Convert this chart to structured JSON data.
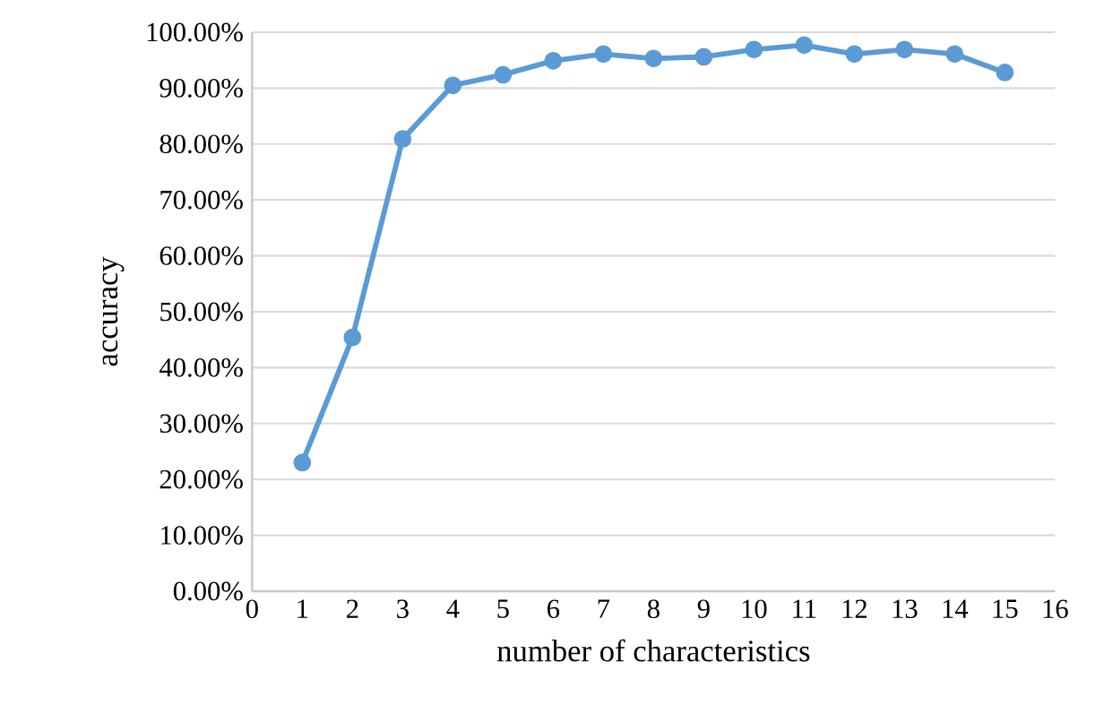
{
  "chart_data": {
    "type": "line",
    "xlabel": "number of  characteristics",
    "ylabel": "accuracy",
    "x": [
      1,
      2,
      3,
      4,
      5,
      6,
      7,
      8,
      9,
      10,
      11,
      12,
      13,
      14,
      15
    ],
    "series": [
      {
        "color": "#5b9bd5",
        "values": [
          23,
          45.4,
          80.9,
          90.5,
          92.4,
          94.9,
          96.1,
          95.3,
          95.6,
          96.9,
          97.7,
          96.1,
          96.9,
          96.1,
          92.8
        ]
      }
    ],
    "xlim": [
      0,
      16
    ],
    "xticks": [
      0,
      1,
      2,
      3,
      4,
      5,
      6,
      7,
      8,
      9,
      10,
      11,
      12,
      13,
      14,
      15,
      16
    ],
    "ylim": [
      0,
      100
    ],
    "yticks": [
      {
        "value": 0,
        "label": "0.00%"
      },
      {
        "value": 10,
        "label": "10.00%"
      },
      {
        "value": 20,
        "label": "20.00%"
      },
      {
        "value": 30,
        "label": "30.00%"
      },
      {
        "value": 40,
        "label": "40.00%"
      },
      {
        "value": 50,
        "label": "50.00%"
      },
      {
        "value": 60,
        "label": "60.00%"
      },
      {
        "value": 70,
        "label": "70.00%"
      },
      {
        "value": 80,
        "label": "80.00%"
      },
      {
        "value": 90,
        "label": "90.00%"
      },
      {
        "value": 100,
        "label": "100.00%"
      }
    ],
    "grid": "y",
    "marker": "circle",
    "line_style": "solid"
  }
}
